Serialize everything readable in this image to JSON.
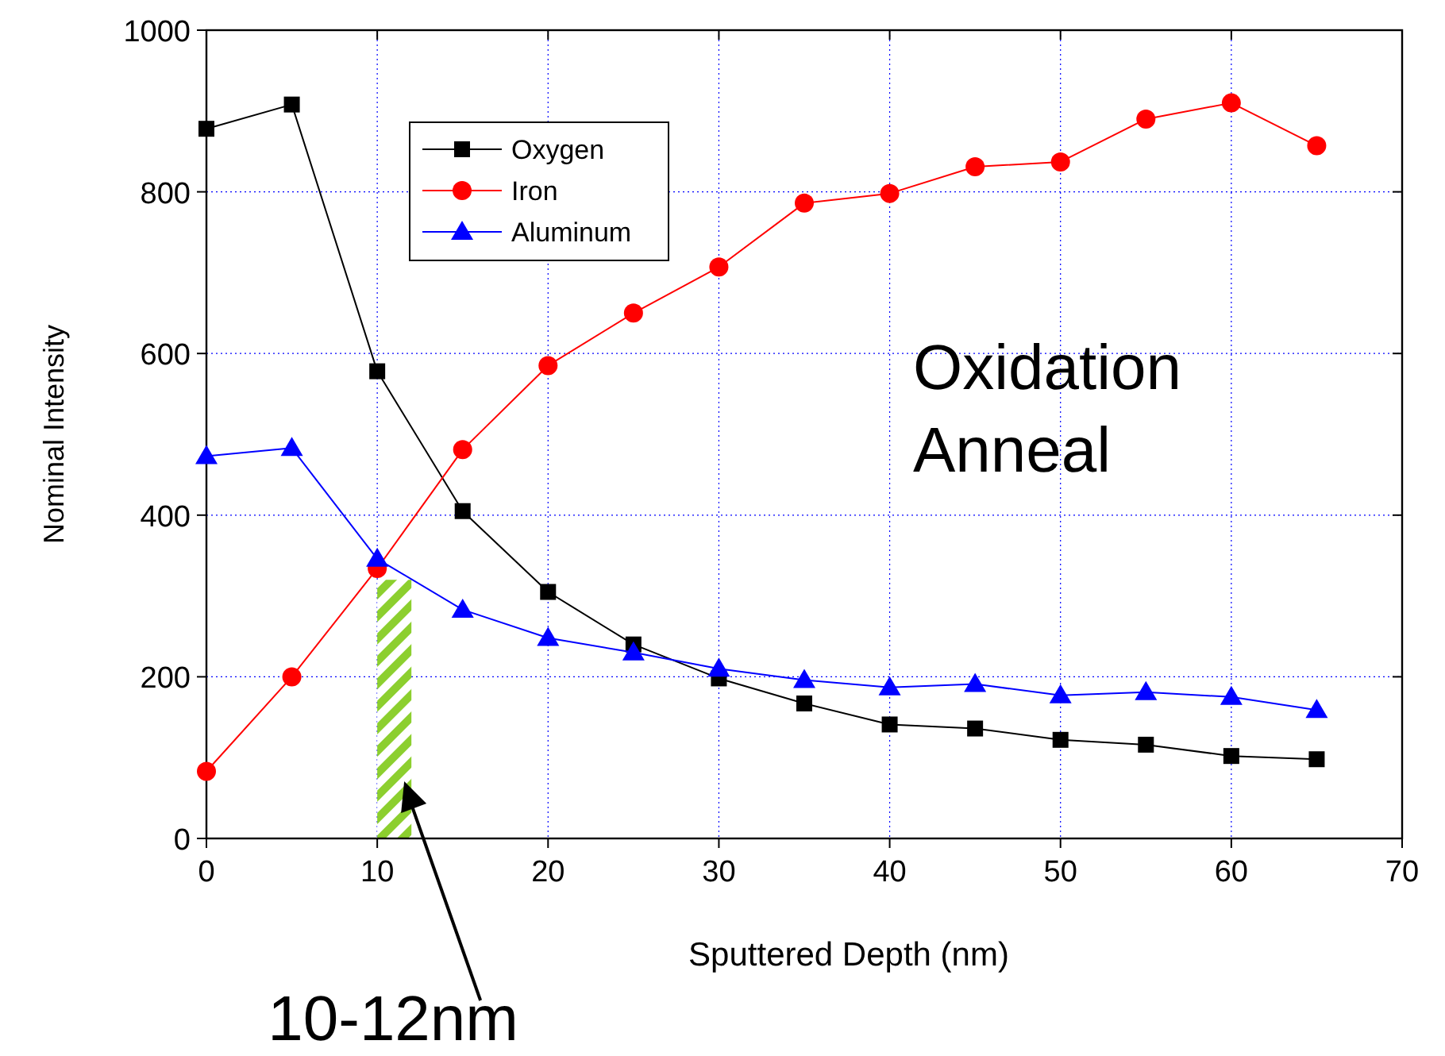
{
  "chart_data": {
    "type": "line",
    "xlabel": "Sputtered Depth (nm)",
    "ylabel": "Nominal Intensity",
    "x": [
      0,
      5,
      10,
      15,
      20,
      25,
      30,
      35,
      40,
      45,
      50,
      55,
      60,
      65
    ],
    "series": [
      {
        "name": "Oxygen",
        "color": "#000000",
        "marker": "square",
        "values": [
          878,
          908,
          578,
          405,
          305,
          240,
          198,
          167,
          141,
          136,
          122,
          116,
          102,
          98
        ]
      },
      {
        "name": "Iron",
        "color": "#ff0000",
        "marker": "circle",
        "values": [
          83,
          200,
          334,
          481,
          585,
          650,
          707,
          786,
          798,
          831,
          837,
          890,
          910,
          857
        ]
      },
      {
        "name": "Aluminum",
        "color": "#0000ff",
        "marker": "triangle",
        "values": [
          473,
          483,
          346,
          283,
          248,
          230,
          210,
          196,
          187,
          191,
          177,
          181,
          175,
          159
        ]
      }
    ],
    "xlim": [
      0,
      70
    ],
    "xticks": [
      0,
      10,
      20,
      30,
      40,
      50,
      60,
      70
    ],
    "ylim": [
      0,
      1000
    ],
    "yticks": [
      0,
      200,
      400,
      600,
      800,
      1000
    ],
    "grid": true,
    "legend": "top left",
    "line_style": "solid",
    "bands": [
      {
        "axis": "x",
        "from": 10,
        "to": 12,
        "label": "10-12nm",
        "color": "#8ccf2e"
      }
    ],
    "annotations": [
      "Oxidation Anneal"
    ]
  }
}
